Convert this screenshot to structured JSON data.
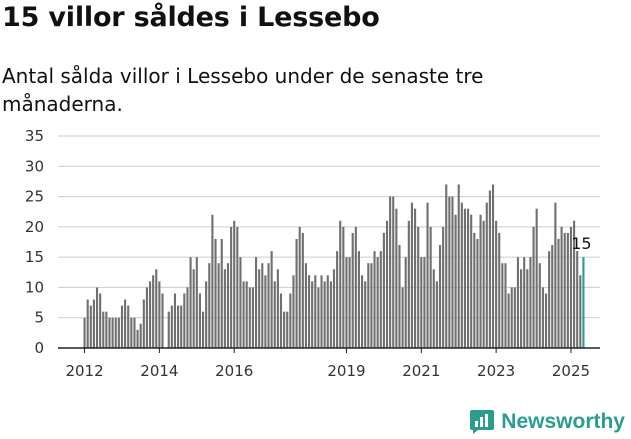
{
  "header": {
    "title": "15 villor såldes i Lessebo",
    "subtitle": "Antal sålda villor i Lessebo under de senaste tre månaderna."
  },
  "brand": {
    "name": "Newsworthy"
  },
  "colors": {
    "bar": "#707070",
    "highlight": "#2a9d8f",
    "grid": "#cccccc"
  },
  "chart_data": {
    "type": "bar",
    "title": "",
    "xlabel": "",
    "ylabel": "",
    "ylim": [
      0,
      35
    ],
    "yticks": [
      0,
      5,
      10,
      15,
      20,
      25,
      30,
      35
    ],
    "xticks": [
      "2012",
      "2014",
      "2016",
      "2019",
      "2021",
      "2023",
      "2025"
    ],
    "grid": true,
    "last_value_label": "15",
    "series": [
      {
        "values": [
          5,
          8,
          7,
          8,
          10,
          9,
          6,
          6,
          5,
          5,
          5,
          5,
          7,
          8,
          7,
          5,
          5,
          3,
          4,
          8,
          10,
          11,
          12,
          13,
          11,
          9,
          0,
          6,
          7,
          9,
          7,
          7,
          9,
          10,
          15,
          13,
          15,
          9,
          6,
          11,
          14,
          22,
          18,
          14,
          18,
          13,
          14,
          20,
          21,
          20,
          15,
          11,
          11,
          10,
          10,
          15,
          13,
          14,
          12,
          14,
          16,
          11,
          13,
          9,
          6,
          6,
          9,
          12,
          18,
          20,
          19,
          14,
          12,
          11,
          12,
          10,
          12,
          11,
          12,
          11,
          13,
          16,
          21,
          20,
          15,
          15,
          19,
          20,
          16,
          12,
          11,
          14,
          14,
          16,
          15,
          16,
          19,
          21,
          25,
          25,
          23,
          17,
          10,
          15,
          21,
          24,
          23,
          20,
          15,
          15,
          24,
          20,
          13,
          11,
          17,
          20,
          27,
          25,
          25,
          22,
          27,
          24,
          23,
          23,
          22,
          19,
          18,
          22,
          21,
          24,
          26,
          27,
          21,
          19,
          14,
          14,
          9,
          10,
          10,
          15,
          13,
          15,
          13,
          15,
          20,
          23,
          14,
          10,
          9,
          16,
          17,
          24,
          18,
          20,
          19,
          19,
          20,
          21,
          16,
          12,
          15
        ]
      }
    ]
  }
}
